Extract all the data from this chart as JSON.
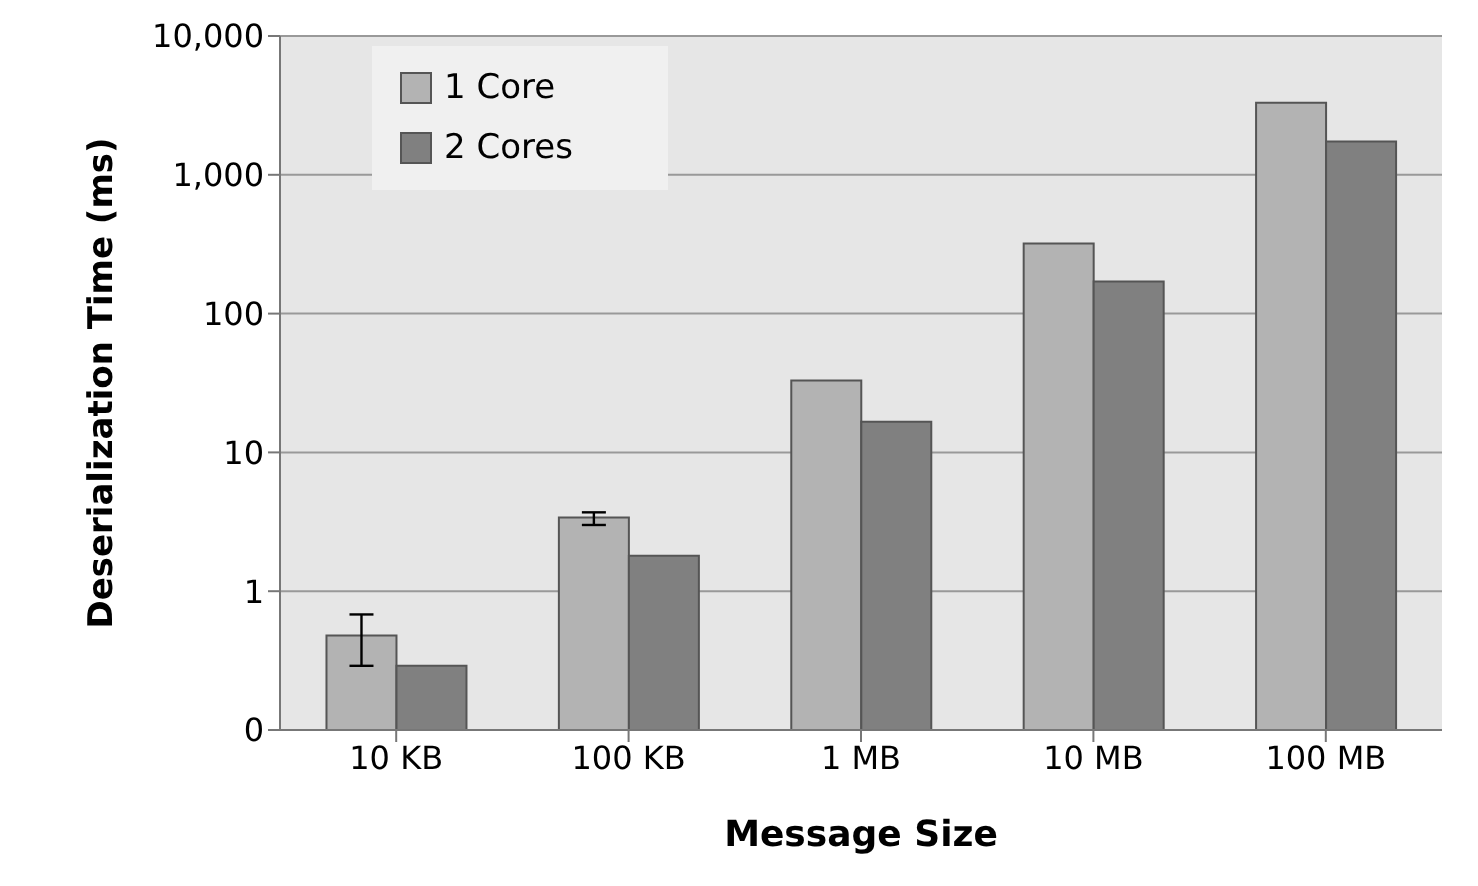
{
  "chart_data": {
    "type": "bar",
    "xlabel": "Message Size",
    "ylabel": "Deserialization Time (ms)",
    "categories": [
      "10 KB",
      "100 KB",
      "1 MB",
      "10 MB",
      "100 MB"
    ],
    "series": [
      {
        "name": "1 Core",
        "color": "#b3b3b3",
        "values": [
          0.48,
          3.4,
          33,
          320,
          3300
        ],
        "errors": [
          [
            0.29,
            0.68
          ],
          [
            3.0,
            3.7
          ],
          null,
          null,
          null
        ]
      },
      {
        "name": "2 Cores",
        "color": "#808080",
        "values": [
          0.29,
          1.8,
          16.6,
          170,
          1740
        ]
      }
    ],
    "log": "y",
    "ylim": [
      0.1,
      10000
    ],
    "yticks": [
      {
        "value": 0.1,
        "label": "0"
      },
      1,
      10,
      100,
      {
        "value": 1000,
        "label": "1,000"
      },
      {
        "value": 10000,
        "label": "10,000"
      }
    ],
    "grid": "y",
    "legend": "top left"
  }
}
